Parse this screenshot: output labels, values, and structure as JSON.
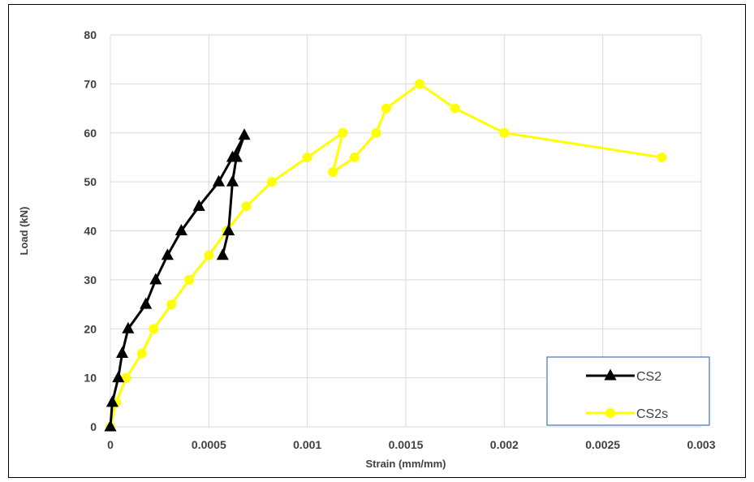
{
  "chart_data": {
    "type": "line",
    "title": "",
    "xlabel": "Strain (mm/mm)",
    "ylabel": "Load (kN)",
    "xlim": [
      0,
      0.003
    ],
    "ylim": [
      0,
      80
    ],
    "x_ticks": [
      "0",
      "0.0005",
      "0.001",
      "0.0015",
      "0.002",
      "0.0025",
      "0.003"
    ],
    "y_ticks": [
      "0",
      "10",
      "20",
      "30",
      "40",
      "50",
      "60",
      "70",
      "80"
    ],
    "grid": true,
    "legend_position": "bottom-right",
    "series": [
      {
        "name": "CS2",
        "color": "#000000",
        "marker": "triangle",
        "points": [
          [
            0,
            0
          ],
          [
            1e-05,
            5
          ],
          [
            4e-05,
            10
          ],
          [
            6e-05,
            15
          ],
          [
            9e-05,
            20
          ],
          [
            0.00018,
            25
          ],
          [
            0.00023,
            30
          ],
          [
            0.00029,
            35
          ],
          [
            0.00036,
            40
          ],
          [
            0.00045,
            45
          ],
          [
            0.00055,
            50
          ],
          [
            0.00062,
            55
          ],
          [
            0.00068,
            59.5
          ],
          [
            0.00064,
            55
          ],
          [
            0.00062,
            50
          ],
          [
            0.0006,
            40
          ],
          [
            0.00057,
            35
          ]
        ]
      },
      {
        "name": "CS2s",
        "color": "#ffff00",
        "marker": "circle",
        "points": [
          [
            0,
            0
          ],
          [
            3e-05,
            5
          ],
          [
            8e-05,
            10
          ],
          [
            0.00016,
            15
          ],
          [
            0.00022,
            20
          ],
          [
            0.00031,
            25
          ],
          [
            0.0004,
            30
          ],
          [
            0.0005,
            35
          ],
          [
            0.00059,
            40
          ],
          [
            0.00069,
            45
          ],
          [
            0.00082,
            50
          ],
          [
            0.001,
            55
          ],
          [
            0.00118,
            60
          ],
          [
            0.00113,
            52
          ],
          [
            0.00124,
            55
          ],
          [
            0.00135,
            60
          ],
          [
            0.0014,
            65
          ],
          [
            0.00157,
            70
          ],
          [
            0.00175,
            65
          ],
          [
            0.002,
            60
          ],
          [
            0.0028,
            55
          ]
        ]
      }
    ]
  }
}
